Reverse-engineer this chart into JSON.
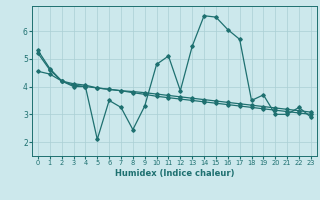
{
  "xlabel": "Humidex (Indice chaleur)",
  "ylabel": "",
  "xlim": [
    -0.5,
    23.5
  ],
  "ylim": [
    1.5,
    6.9
  ],
  "yticks": [
    2,
    3,
    4,
    5,
    6
  ],
  "xticks": [
    0,
    1,
    2,
    3,
    4,
    5,
    6,
    7,
    8,
    9,
    10,
    11,
    12,
    13,
    14,
    15,
    16,
    17,
    18,
    19,
    20,
    21,
    22,
    23
  ],
  "background_color": "#cce8ec",
  "grid_color": "#aacfd4",
  "line_color": "#1e7070",
  "x": [
    0,
    1,
    2,
    3,
    4,
    5,
    6,
    7,
    8,
    9,
    10,
    11,
    12,
    13,
    14,
    15,
    16,
    17,
    18,
    19,
    20,
    21,
    22,
    23
  ],
  "line1": [
    5.3,
    4.65,
    4.2,
    4.0,
    4.0,
    2.1,
    3.5,
    3.25,
    2.45,
    3.3,
    4.8,
    5.1,
    3.85,
    5.45,
    6.55,
    6.5,
    6.05,
    5.7,
    3.5,
    3.7,
    3.0,
    3.0,
    3.25,
    2.9
  ],
  "line2": [
    5.2,
    4.6,
    4.2,
    4.05,
    4.0,
    3.95,
    3.9,
    3.85,
    3.78,
    3.72,
    3.65,
    3.6,
    3.55,
    3.5,
    3.45,
    3.4,
    3.35,
    3.3,
    3.25,
    3.2,
    3.15,
    3.1,
    3.05,
    3.0
  ],
  "line3": [
    4.55,
    4.45,
    4.2,
    4.1,
    4.05,
    3.95,
    3.9,
    3.85,
    3.82,
    3.78,
    3.73,
    3.68,
    3.63,
    3.58,
    3.53,
    3.48,
    3.43,
    3.38,
    3.33,
    3.28,
    3.23,
    3.18,
    3.13,
    3.08
  ]
}
